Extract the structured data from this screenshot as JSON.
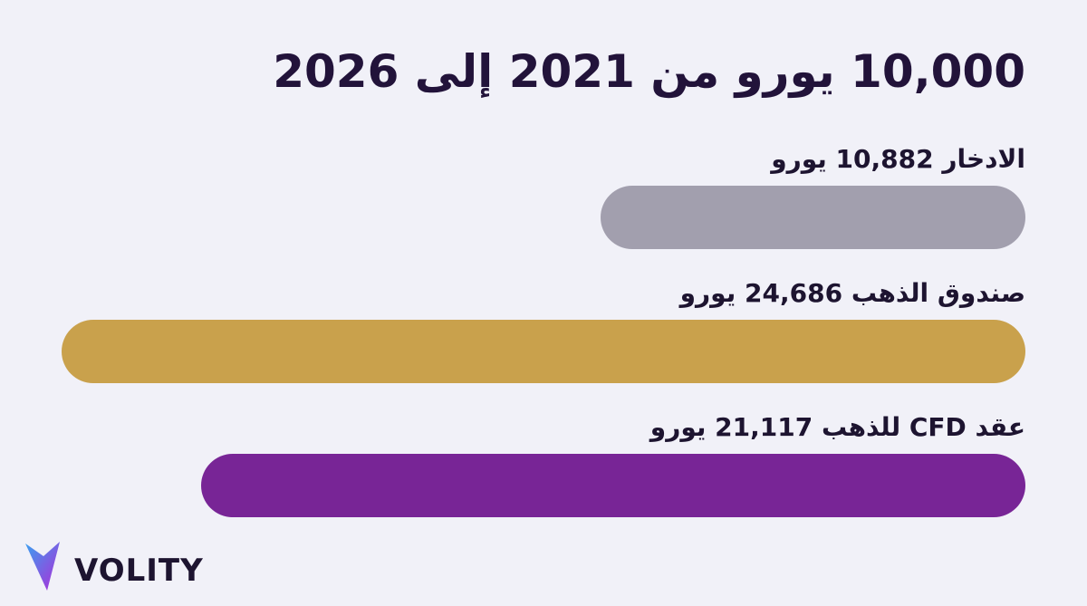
{
  "chart_data": {
    "type": "bar",
    "orientation": "horizontal",
    "title": "10,000 يورو من 2021 إلى 2026",
    "categories": [
      "الادخار",
      "صندوق الذهب",
      "عقد CFD للذهب"
    ],
    "values": [
      10882,
      24686,
      21117
    ],
    "value_labels": [
      "10,882",
      "24,686",
      "21,117"
    ],
    "unit": "يورو",
    "colors": [
      "#a29fae",
      "#c9a14c",
      "#782596"
    ]
  },
  "brand": "VOLITY"
}
